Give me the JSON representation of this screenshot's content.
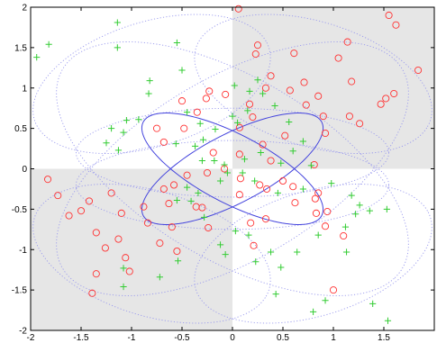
{
  "chart_data": {
    "type": "scatter",
    "title": "",
    "xlabel": "",
    "ylabel": "",
    "xlim": [
      -2,
      2
    ],
    "ylim": [
      -2,
      2
    ],
    "x_ticks": [
      -2,
      -1.5,
      -1,
      -0.5,
      0,
      0.5,
      1,
      1.5
    ],
    "x_tick_labels": [
      "-2",
      "-1.5",
      "-1",
      "-0.5",
      "0",
      "0.5",
      "1",
      "1.5"
    ],
    "y_ticks": [
      -2,
      -1.5,
      -1,
      -0.5,
      0,
      0.5,
      1,
      1.5,
      2
    ],
    "y_tick_labels": [
      "-2",
      "-1.5",
      "-1",
      "-0.5",
      "0",
      "0.5",
      "1",
      "1.5",
      "2"
    ],
    "grid": false,
    "legend": "none",
    "shaded_quadrants": [
      {
        "x": [
          0,
          2
        ],
        "y": [
          0,
          2
        ]
      },
      {
        "x": [
          -2,
          0
        ],
        "y": [
          -2,
          0
        ]
      }
    ],
    "colors": {
      "quadrant_fill": "#e6e6e6",
      "circle_marker": "#ff3333",
      "plus_marker": "#33cc33",
      "solid_ellipse": "#4444dd",
      "dotted_ellipse": "#9999ee"
    },
    "series": [
      {
        "marker": "circle",
        "color": "#ff3333",
        "points": [
          [
            0.06,
            1.98
          ],
          [
            1.55,
            1.9
          ],
          [
            1.62,
            1.78
          ],
          [
            1.14,
            1.57
          ],
          [
            0.25,
            1.53
          ],
          [
            0.23,
            1.42
          ],
          [
            0.61,
            1.43
          ],
          [
            1.05,
            1.37
          ],
          [
            1.84,
            1.22
          ],
          [
            0.38,
            1.15
          ],
          [
            0.71,
            1.07
          ],
          [
            1.18,
            1.08
          ],
          [
            1.52,
            0.87
          ],
          [
            0.57,
            0.97
          ],
          [
            1.6,
            0.93
          ],
          [
            0.85,
            0.9
          ],
          [
            1.47,
            0.8
          ],
          [
            0.33,
            1.0
          ],
          [
            -0.5,
            0.84
          ],
          [
            -0.23,
            0.96
          ],
          [
            -0.26,
            0.87
          ],
          [
            -0.07,
            0.92
          ],
          [
            -0.35,
            0.7
          ],
          [
            -0.48,
            0.5
          ],
          [
            -0.75,
            0.5
          ],
          [
            0.17,
            0.8
          ],
          [
            1.26,
            0.56
          ],
          [
            1.16,
            0.65
          ],
          [
            0.2,
            0.64
          ],
          [
            0.73,
            0.79
          ],
          [
            0.07,
            0.51
          ],
          [
            0.3,
            0.3
          ],
          [
            0.9,
            0.65
          ],
          [
            0.92,
            0.44
          ],
          [
            0.52,
            0.41
          ],
          [
            0.07,
            0.18
          ],
          [
            0.38,
            0.1
          ],
          [
            0.81,
            0.05
          ],
          [
            -0.68,
            0.33
          ],
          [
            -0.19,
            0.2
          ],
          [
            -0.08,
            0.0
          ],
          [
            -0.25,
            -0.05
          ],
          [
            -0.68,
            -0.25
          ],
          [
            -0.58,
            -0.2
          ],
          [
            -0.45,
            -0.08
          ],
          [
            0.08,
            -0.12
          ],
          [
            0.27,
            -0.2
          ],
          [
            0.34,
            -0.25
          ],
          [
            0.5,
            -0.15
          ],
          [
            0.6,
            -0.22
          ],
          [
            0.82,
            -0.37
          ],
          [
            0.85,
            -0.3
          ],
          [
            0.62,
            -0.42
          ],
          [
            0.07,
            -0.32
          ],
          [
            -0.36,
            -0.47
          ],
          [
            -0.63,
            -0.43
          ],
          [
            -0.88,
            -0.47
          ],
          [
            -0.6,
            -0.72
          ],
          [
            -0.72,
            -0.92
          ],
          [
            -0.55,
            -1.02
          ],
          [
            -0.84,
            -0.67
          ],
          [
            -0.3,
            -0.48
          ],
          [
            -0.24,
            -0.73
          ],
          [
            0.33,
            -0.62
          ],
          [
            0.18,
            -0.67
          ],
          [
            0.83,
            -0.55
          ],
          [
            0.94,
            -0.53
          ],
          [
            0.21,
            -0.95
          ],
          [
            0.92,
            -0.71
          ],
          [
            1.1,
            -0.83
          ],
          [
            1.0,
            -1.5
          ],
          [
            -1.83,
            -0.13
          ],
          [
            -1.73,
            -0.33
          ],
          [
            -1.62,
            -0.58
          ],
          [
            -1.42,
            -0.4
          ],
          [
            -1.5,
            -0.52
          ],
          [
            -1.2,
            -0.3
          ],
          [
            -1.1,
            -0.55
          ],
          [
            -1.13,
            -0.87
          ],
          [
            -1.26,
            -0.98
          ],
          [
            -1.35,
            -1.3
          ],
          [
            -1.39,
            -1.54
          ],
          [
            -1.35,
            -0.79
          ],
          [
            -1.06,
            -1.1
          ],
          [
            -1.02,
            -1.27
          ]
        ]
      },
      {
        "marker": "plus",
        "color": "#33cc33",
        "points": [
          [
            -1.94,
            1.38
          ],
          [
            -1.82,
            1.54
          ],
          [
            -1.14,
            1.81
          ],
          [
            -1.14,
            1.5
          ],
          [
            -0.5,
            1.22
          ],
          [
            -0.82,
            1.09
          ],
          [
            -0.55,
            1.56
          ],
          [
            0.02,
            1.03
          ],
          [
            0.25,
            1.1
          ],
          [
            0.17,
            0.96
          ],
          [
            0.3,
            0.93
          ],
          [
            0.42,
            0.78
          ],
          [
            0.15,
            0.72
          ],
          [
            -0.83,
            0.93
          ],
          [
            -0.93,
            0.61
          ],
          [
            -1.05,
            0.6
          ],
          [
            -1.08,
            0.45
          ],
          [
            -1.2,
            0.5
          ],
          [
            -1.25,
            0.32
          ],
          [
            -1.13,
            0.23
          ],
          [
            -0.45,
            0.7
          ],
          [
            -0.32,
            0.56
          ],
          [
            -0.17,
            0.49
          ],
          [
            0.0,
            0.65
          ],
          [
            0.05,
            0.57
          ],
          [
            -0.29,
            0.36
          ],
          [
            -0.37,
            0.28
          ],
          [
            -0.56,
            0.31
          ],
          [
            -0.3,
            0.1
          ],
          [
            -0.18,
            0.1
          ],
          [
            -0.08,
            0.05
          ],
          [
            0.12,
            0.12
          ],
          [
            0.28,
            0.2
          ],
          [
            0.48,
            0.07
          ],
          [
            0.6,
            0.22
          ],
          [
            0.7,
            0.34
          ],
          [
            0.78,
            0.04
          ],
          [
            0.56,
            0.58
          ],
          [
            -0.12,
            -0.15
          ],
          [
            -0.05,
            -0.05
          ],
          [
            0.1,
            -0.05
          ],
          [
            0.22,
            -0.15
          ],
          [
            0.45,
            -0.3
          ],
          [
            0.7,
            -0.25
          ],
          [
            0.98,
            -0.18
          ],
          [
            -0.45,
            -0.23
          ],
          [
            -0.55,
            -0.39
          ],
          [
            -0.41,
            -0.4
          ],
          [
            -0.28,
            -0.6
          ],
          [
            -0.34,
            -0.3
          ],
          [
            1.18,
            -0.33
          ],
          [
            1.26,
            -0.45
          ],
          [
            1.36,
            -0.52
          ],
          [
            1.12,
            -0.72
          ],
          [
            1.22,
            -0.56
          ],
          [
            1.13,
            -1.03
          ],
          [
            0.85,
            -0.82
          ],
          [
            0.64,
            -1.03
          ],
          [
            0.38,
            -1.03
          ],
          [
            0.48,
            -1.22
          ],
          [
            0.03,
            -0.77
          ],
          [
            -0.07,
            -1.06
          ],
          [
            -0.12,
            -0.94
          ],
          [
            -0.54,
            -1.14
          ],
          [
            -0.72,
            -1.34
          ],
          [
            -1.08,
            -1.23
          ],
          [
            -1.08,
            -1.46
          ],
          [
            0.43,
            -1.55
          ],
          [
            0.8,
            -1.77
          ],
          [
            0.92,
            -1.63
          ],
          [
            1.39,
            -1.67
          ],
          [
            1.54,
            -1.88
          ],
          [
            1.53,
            -0.5
          ],
          [
            0.23,
            -1.15
          ],
          [
            0.16,
            -0.82
          ]
        ]
      }
    ],
    "ellipses": [
      {
        "style": "solid",
        "cx": 0,
        "cy": 0,
        "a": 1.06,
        "b": 0.4,
        "angle_deg": 35
      },
      {
        "style": "solid",
        "cx": 0,
        "cy": 0,
        "a": 1.06,
        "b": 0.4,
        "angle_deg": -35
      },
      {
        "style": "dotted",
        "cx": -0.8,
        "cy": 1.05,
        "a": 1.25,
        "b": 0.75,
        "angle_deg": 25
      },
      {
        "style": "dotted",
        "cx": 0.8,
        "cy": 1.05,
        "a": 1.25,
        "b": 0.75,
        "angle_deg": -25
      },
      {
        "style": "dotted",
        "cx": -0.8,
        "cy": -1.05,
        "a": 1.25,
        "b": 0.75,
        "angle_deg": -25
      },
      {
        "style": "dotted",
        "cx": 0.8,
        "cy": -1.05,
        "a": 1.25,
        "b": 0.75,
        "angle_deg": 25
      },
      {
        "style": "dotted",
        "cx": 0,
        "cy": 0,
        "a": 2.1,
        "b": 1.05,
        "angle_deg": 40
      },
      {
        "style": "dotted",
        "cx": 0,
        "cy": 0,
        "a": 2.1,
        "b": 1.05,
        "angle_deg": -40
      },
      {
        "style": "dotted",
        "cx": 0,
        "cy": 0.2,
        "a": 1.55,
        "b": 0.55,
        "angle_deg": 0
      },
      {
        "style": "dotted",
        "cx": 0,
        "cy": -0.2,
        "a": 1.55,
        "b": 0.55,
        "angle_deg": 0
      }
    ]
  }
}
